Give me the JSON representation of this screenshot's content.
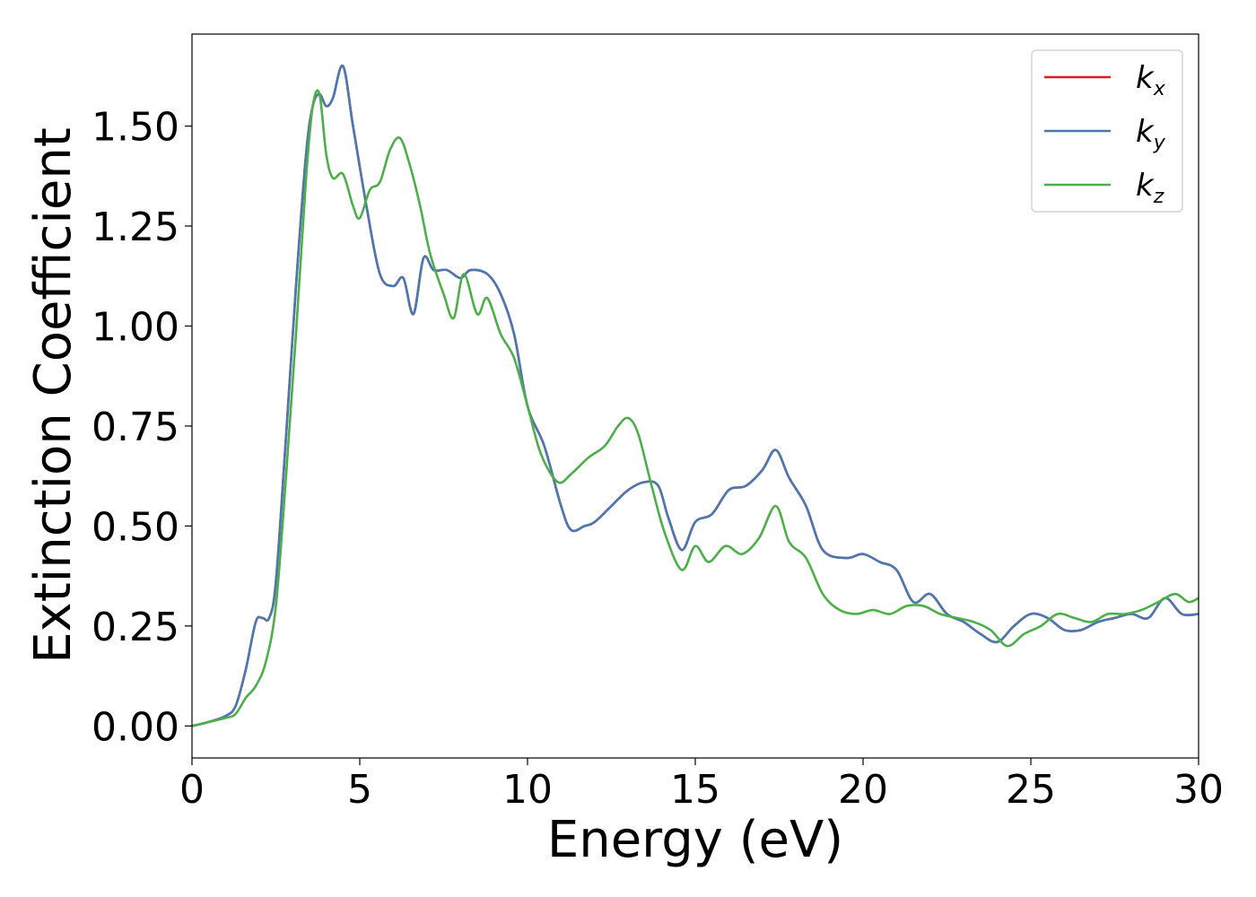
{
  "chart_data": {
    "type": "line",
    "title": "",
    "xlabel": "Energy (eV)",
    "ylabel": "Extinction Coefficient",
    "xlim": [
      0,
      30
    ],
    "ylim": [
      -0.08,
      1.73
    ],
    "xticks": [
      0,
      5,
      10,
      15,
      20,
      25,
      30
    ],
    "xtick_labels": [
      "0",
      "5",
      "10",
      "15",
      "20",
      "25",
      "30"
    ],
    "yticks": [
      0.0,
      0.25,
      0.5,
      0.75,
      1.0,
      1.25,
      1.5
    ],
    "ytick_labels": [
      "0.00",
      "0.25",
      "0.50",
      "0.75",
      "1.00",
      "1.25",
      "1.50"
    ],
    "grid": false,
    "legend": {
      "placement": "top-right"
    },
    "series": [
      {
        "name": "k_x",
        "label_base": "k",
        "label_sub": "x",
        "color": "#e41a1c",
        "x": [
          0,
          0.5,
          1.0,
          1.3,
          1.6,
          1.9,
          2.1,
          2.3,
          2.5,
          2.8,
          3.1,
          3.4,
          3.6,
          3.8,
          4.0,
          4.2,
          4.5,
          4.8,
          5.2,
          5.6,
          6.0,
          6.3,
          6.6,
          6.9,
          7.2,
          7.6,
          8.0,
          8.3,
          8.8,
          9.2,
          9.6,
          10.0,
          10.5,
          11.0,
          11.3,
          11.7,
          12.0,
          12.5,
          13.0,
          13.5,
          13.9,
          14.2,
          14.6,
          15.0,
          15.5,
          16.0,
          16.5,
          17.0,
          17.4,
          17.8,
          18.3,
          18.8,
          19.5,
          20.0,
          20.5,
          21.0,
          21.5,
          22.0,
          22.5,
          23.0,
          23.5,
          24.0,
          24.5,
          25.0,
          25.5,
          26.0,
          26.5,
          27.0,
          27.5,
          28.0,
          28.5,
          29.0,
          29.5,
          30.0
        ],
        "y": [
          0,
          0.01,
          0.025,
          0.05,
          0.14,
          0.26,
          0.27,
          0.27,
          0.36,
          0.72,
          1.1,
          1.43,
          1.55,
          1.58,
          1.55,
          1.57,
          1.65,
          1.5,
          1.3,
          1.13,
          1.1,
          1.12,
          1.03,
          1.17,
          1.14,
          1.14,
          1.12,
          1.14,
          1.13,
          1.08,
          0.98,
          0.8,
          0.7,
          0.55,
          0.49,
          0.5,
          0.51,
          0.55,
          0.59,
          0.61,
          0.6,
          0.52,
          0.44,
          0.51,
          0.53,
          0.59,
          0.6,
          0.64,
          0.69,
          0.62,
          0.55,
          0.44,
          0.42,
          0.43,
          0.41,
          0.39,
          0.31,
          0.33,
          0.28,
          0.26,
          0.23,
          0.21,
          0.25,
          0.28,
          0.27,
          0.24,
          0.24,
          0.26,
          0.27,
          0.28,
          0.27,
          0.32,
          0.28,
          0.28
        ]
      },
      {
        "name": "k_y",
        "label_base": "k",
        "label_sub": "y",
        "color": "#4a78b0",
        "x": [
          0,
          0.5,
          1.0,
          1.3,
          1.6,
          1.9,
          2.1,
          2.3,
          2.5,
          2.8,
          3.1,
          3.4,
          3.6,
          3.8,
          4.0,
          4.2,
          4.5,
          4.8,
          5.2,
          5.6,
          6.0,
          6.3,
          6.6,
          6.9,
          7.2,
          7.6,
          8.0,
          8.3,
          8.8,
          9.2,
          9.6,
          10.0,
          10.5,
          11.0,
          11.3,
          11.7,
          12.0,
          12.5,
          13.0,
          13.5,
          13.9,
          14.2,
          14.6,
          15.0,
          15.5,
          16.0,
          16.5,
          17.0,
          17.4,
          17.8,
          18.3,
          18.8,
          19.5,
          20.0,
          20.5,
          21.0,
          21.5,
          22.0,
          22.5,
          23.0,
          23.5,
          24.0,
          24.5,
          25.0,
          25.5,
          26.0,
          26.5,
          27.0,
          27.5,
          28.0,
          28.5,
          29.0,
          29.5,
          30.0
        ],
        "y": [
          0,
          0.01,
          0.025,
          0.05,
          0.14,
          0.26,
          0.27,
          0.27,
          0.36,
          0.72,
          1.1,
          1.43,
          1.55,
          1.58,
          1.55,
          1.57,
          1.65,
          1.5,
          1.3,
          1.13,
          1.1,
          1.12,
          1.03,
          1.17,
          1.14,
          1.14,
          1.12,
          1.14,
          1.13,
          1.08,
          0.98,
          0.8,
          0.7,
          0.55,
          0.49,
          0.5,
          0.51,
          0.55,
          0.59,
          0.61,
          0.6,
          0.52,
          0.44,
          0.51,
          0.53,
          0.59,
          0.6,
          0.64,
          0.69,
          0.62,
          0.55,
          0.44,
          0.42,
          0.43,
          0.41,
          0.39,
          0.31,
          0.33,
          0.28,
          0.26,
          0.23,
          0.21,
          0.25,
          0.28,
          0.27,
          0.24,
          0.24,
          0.26,
          0.27,
          0.28,
          0.27,
          0.32,
          0.28,
          0.28
        ]
      },
      {
        "name": "k_z",
        "label_base": "k",
        "label_sub": "z",
        "color": "#4daf4a",
        "x": [
          0,
          0.5,
          1.0,
          1.3,
          1.6,
          1.9,
          2.2,
          2.5,
          2.8,
          3.1,
          3.4,
          3.6,
          3.8,
          4.0,
          4.2,
          4.5,
          4.8,
          5.0,
          5.3,
          5.6,
          5.9,
          6.2,
          6.5,
          6.8,
          7.1,
          7.5,
          7.8,
          8.1,
          8.5,
          8.8,
          9.2,
          9.6,
          10.0,
          10.4,
          10.9,
          11.3,
          11.8,
          12.3,
          12.7,
          13.0,
          13.3,
          13.7,
          14.1,
          14.6,
          15.0,
          15.4,
          15.9,
          16.4,
          16.9,
          17.4,
          17.8,
          18.3,
          18.8,
          19.3,
          19.8,
          20.3,
          20.8,
          21.3,
          21.8,
          22.3,
          22.8,
          23.3,
          23.8,
          24.3,
          24.8,
          25.3,
          25.8,
          26.3,
          26.8,
          27.3,
          27.8,
          28.3,
          28.8,
          29.3,
          29.7,
          30.0
        ],
        "y": [
          0,
          0.01,
          0.02,
          0.03,
          0.07,
          0.1,
          0.16,
          0.3,
          0.62,
          0.98,
          1.37,
          1.55,
          1.58,
          1.43,
          1.37,
          1.38,
          1.3,
          1.27,
          1.34,
          1.36,
          1.44,
          1.47,
          1.4,
          1.3,
          1.18,
          1.08,
          1.02,
          1.13,
          1.03,
          1.07,
          0.98,
          0.92,
          0.8,
          0.68,
          0.61,
          0.63,
          0.67,
          0.7,
          0.75,
          0.77,
          0.73,
          0.6,
          0.48,
          0.39,
          0.45,
          0.41,
          0.45,
          0.43,
          0.47,
          0.55,
          0.46,
          0.42,
          0.33,
          0.29,
          0.28,
          0.29,
          0.28,
          0.3,
          0.3,
          0.28,
          0.27,
          0.26,
          0.24,
          0.2,
          0.23,
          0.25,
          0.28,
          0.27,
          0.26,
          0.28,
          0.28,
          0.29,
          0.31,
          0.33,
          0.31,
          0.32
        ]
      }
    ]
  }
}
